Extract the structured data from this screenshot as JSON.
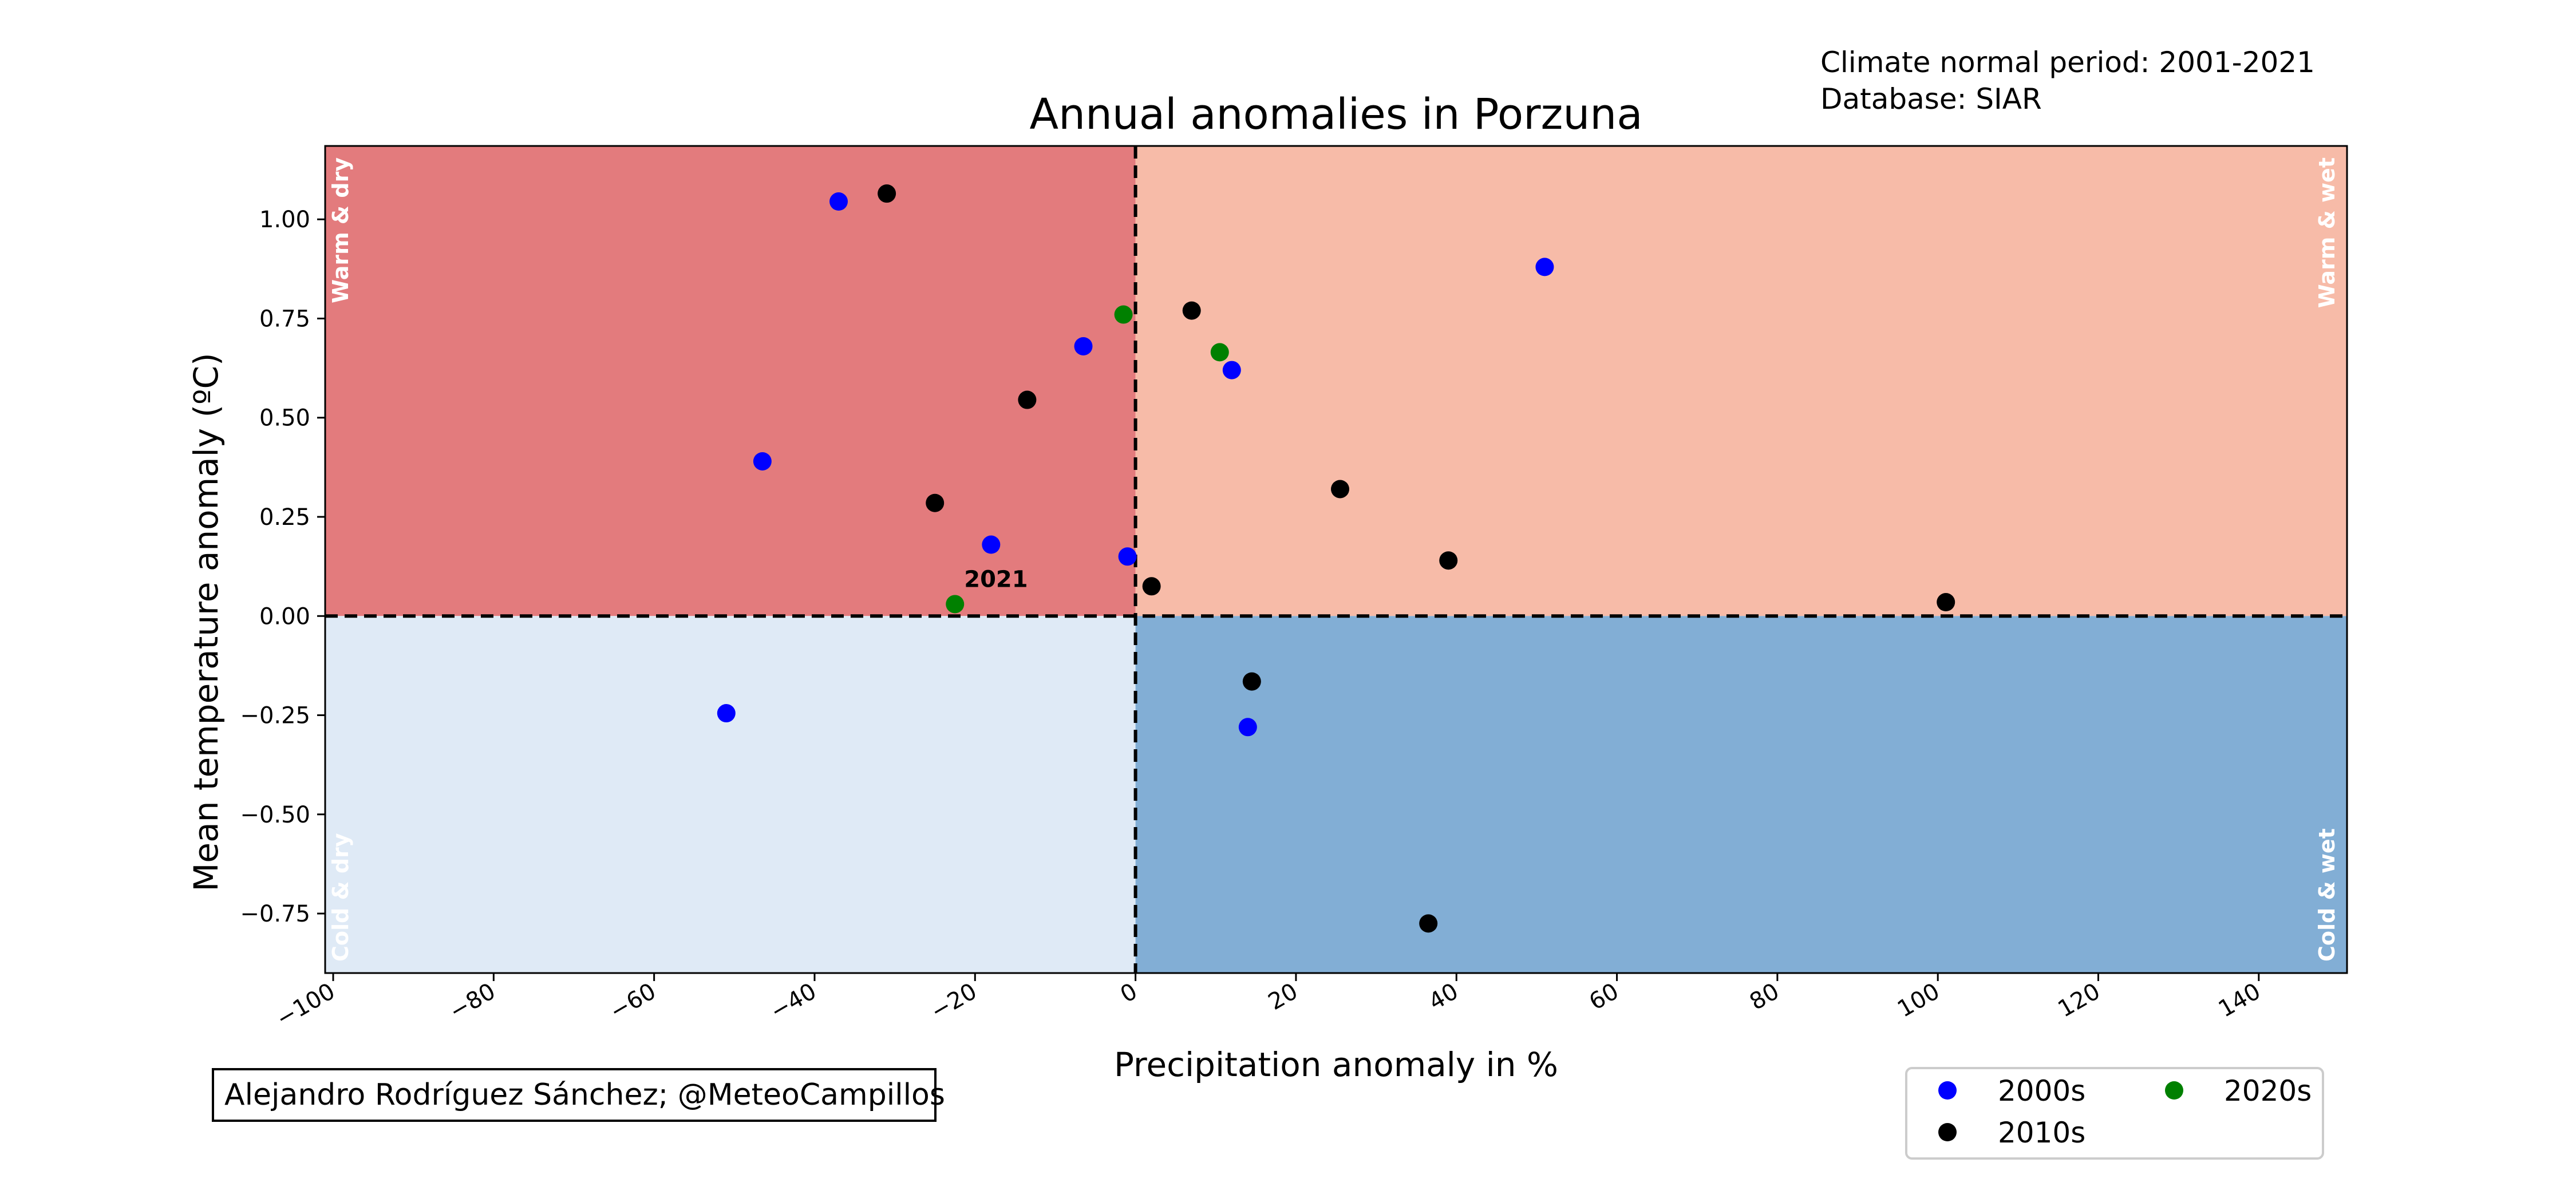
{
  "chart_data": {
    "type": "scatter",
    "title": "Annual anomalies in Porzuna",
    "info_lines": [
      "Climate normal period: 2001-2021",
      "Database: SIAR"
    ],
    "credit": "Alejandro Rodríguez Sánchez; @MeteoCampillos",
    "xlabel": "Precipitation anomaly in %",
    "ylabel": "Mean temperature anomaly (ºC)",
    "xlim": [
      -101,
      151
    ],
    "ylim": [
      -0.9,
      1.185
    ],
    "xticks": [
      -100,
      -80,
      -60,
      -40,
      -20,
      0,
      20,
      40,
      60,
      80,
      100,
      120,
      140
    ],
    "xtick_labels": [
      "−100",
      "−80",
      "−60",
      "−40",
      "−20",
      "0",
      "20",
      "40",
      "60",
      "80",
      "100",
      "120",
      "140"
    ],
    "yticks": [
      -0.75,
      -0.5,
      -0.25,
      0.0,
      0.25,
      0.5,
      0.75,
      1.0
    ],
    "ytick_labels": [
      "−0.75",
      "−0.50",
      "−0.25",
      "0.00",
      "0.25",
      "0.50",
      "0.75",
      "1.00"
    ],
    "grid": false,
    "quadrants": [
      {
        "label": "Warm & dry",
        "x_range": [
          -101,
          0
        ],
        "y_range": [
          0,
          1.185
        ],
        "color": "#e37b7d"
      },
      {
        "label": "Warm & wet",
        "x_range": [
          0,
          151
        ],
        "y_range": [
          0,
          1.185
        ],
        "color": "#f7bba8"
      },
      {
        "label": "Cold & dry",
        "x_range": [
          -101,
          0
        ],
        "y_range": [
          -0.9,
          0
        ],
        "color": "#dfeaf6"
      },
      {
        "label": "Cold & wet",
        "x_range": [
          0,
          151
        ],
        "y_range": [
          -0.9,
          0
        ],
        "color": "#82aed5"
      }
    ],
    "reference_lines": {
      "x": 0,
      "y": 0
    },
    "legend": {
      "placement": "bottom-right",
      "ncol": 2
    },
    "series": [
      {
        "name": "2000s",
        "color": "#0000ff",
        "points": [
          [
            -37,
            1.045
          ],
          [
            51,
            0.88
          ],
          [
            -6.5,
            0.68
          ],
          [
            12,
            0.62
          ],
          [
            -46.5,
            0.39
          ],
          [
            -18,
            0.18
          ],
          [
            -1,
            0.15
          ],
          [
            -51,
            -0.245
          ],
          [
            14,
            -0.28
          ]
        ]
      },
      {
        "name": "2010s",
        "color": "#000000",
        "points": [
          [
            -31,
            1.065
          ],
          [
            7,
            0.77
          ],
          [
            -13.5,
            0.545
          ],
          [
            -25,
            0.285
          ],
          [
            25.5,
            0.32
          ],
          [
            39,
            0.14
          ],
          [
            2,
            0.075
          ],
          [
            101,
            0.035
          ],
          [
            14.5,
            -0.165
          ],
          [
            36.5,
            -0.775
          ]
        ]
      },
      {
        "name": "2020s",
        "color": "#008000",
        "points": [
          [
            -1.5,
            0.76
          ],
          [
            10.5,
            0.665
          ],
          [
            -22.5,
            0.03
          ]
        ]
      }
    ],
    "annotations": [
      {
        "text": "2021",
        "x": -22.5,
        "y": 0.03
      }
    ]
  }
}
